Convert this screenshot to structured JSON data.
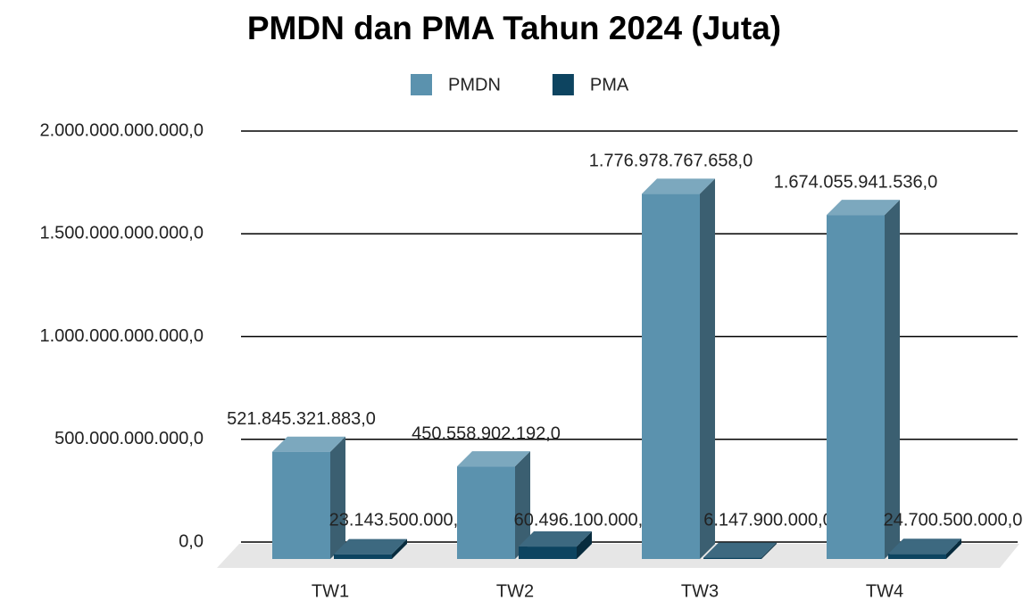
{
  "chart_data": {
    "type": "bar3d",
    "title": "PMDN dan PMA Tahun 2024 (Juta)",
    "categories": [
      "TW1",
      "TW2",
      "TW3",
      "TW4"
    ],
    "series": [
      {
        "name": "PMDN",
        "color": "#5b92ae",
        "values": [
          521845321883,
          450558902192,
          1776978767658,
          1674055941536
        ],
        "value_labels": [
          "521.845.321.883,0",
          "450.558.902.192,0",
          "1.776.978.767.658,0",
          "1.674.055.941.536,0"
        ]
      },
      {
        "name": "PMA",
        "color": "#0d4460",
        "values": [
          23143500000,
          60496100000,
          6147900000,
          24700500000
        ],
        "value_labels": [
          "23.143.500.000,0",
          "60.496.100.000,0",
          "6.147.900.000,0",
          "24.700.500.000,0"
        ]
      }
    ],
    "ylim": [
      0,
      2000000000000
    ],
    "yticks": [
      {
        "value": 0,
        "label": "0,0"
      },
      {
        "value": 500000000000,
        "label": "500.000.000.000,0"
      },
      {
        "value": 1000000000000,
        "label": "1.000.000.000.000,0"
      },
      {
        "value": 1500000000000,
        "label": "1.500.000.000.000,0"
      },
      {
        "value": 2000000000000,
        "label": "2.000.000.000.000,0"
      }
    ],
    "grid": true,
    "legend": "top"
  }
}
